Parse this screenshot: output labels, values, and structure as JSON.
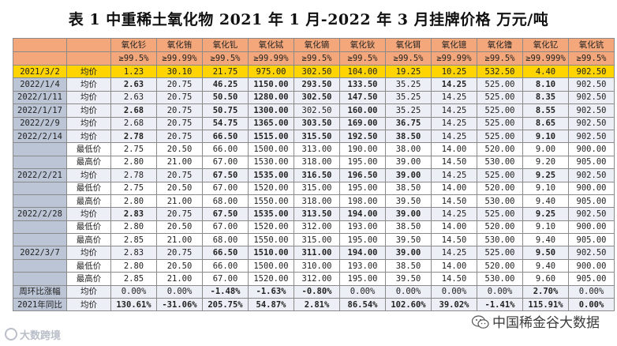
{
  "title": "表 1  中重稀土氧化物 2021 年 1 月-2022 年 3 月挂牌价格    万元/吨",
  "header": {
    "blank1": "",
    "blank2": "",
    "products": [
      {
        "name": "氧化钐",
        "purity": "≥99.5%"
      },
      {
        "name": "氧化铕",
        "purity": "≥99.99%"
      },
      {
        "name": "氧化钆",
        "purity": "≥99.5%"
      },
      {
        "name": "氧化铽",
        "purity": "≥99.99%"
      },
      {
        "name": "氧化镝",
        "purity": "≥99.5%"
      },
      {
        "name": "氧化钬",
        "purity": "≥99.5%"
      },
      {
        "name": "氧化铒",
        "purity": "≥99.5%"
      },
      {
        "name": "氧化镱",
        "purity": "≥99.99%"
      },
      {
        "name": "氧化镥",
        "purity": "≥99.5%"
      },
      {
        "name": "氧化钇",
        "purity": "≥99.999%"
      },
      {
        "name": "氧化钪",
        "purity": "≥99.5%"
      }
    ]
  },
  "rows": [
    {
      "date": "2021/3/2",
      "label": "均价",
      "style": "base",
      "cells": [
        {
          "v": "1.23",
          "c": ""
        },
        {
          "v": "30.10",
          "c": ""
        },
        {
          "v": "21.75",
          "c": ""
        },
        {
          "v": "975.00",
          "c": ""
        },
        {
          "v": "302.50",
          "c": ""
        },
        {
          "v": "104.00",
          "c": ""
        },
        {
          "v": "19.25",
          "c": ""
        },
        {
          "v": "10.25",
          "c": ""
        },
        {
          "v": "532.50",
          "c": ""
        },
        {
          "v": "4.40",
          "c": ""
        },
        {
          "v": "902.50",
          "c": ""
        }
      ]
    },
    {
      "date": "2022/1/4",
      "label": "均价",
      "style": "stripe",
      "cells": [
        {
          "v": "2.63",
          "c": "up"
        },
        {
          "v": "20.75",
          "c": ""
        },
        {
          "v": "46.25",
          "c": "up"
        },
        {
          "v": "1150.00",
          "c": "up"
        },
        {
          "v": "293.50",
          "c": "up"
        },
        {
          "v": "133.50",
          "c": "up"
        },
        {
          "v": "35.25",
          "c": ""
        },
        {
          "v": "14.25",
          "c": "up"
        },
        {
          "v": "525.00",
          "c": ""
        },
        {
          "v": "8.10",
          "c": "up"
        },
        {
          "v": "902.50",
          "c": ""
        }
      ]
    },
    {
      "date": "2022/1/11",
      "label": "均价",
      "style": "stripe",
      "cells": [
        {
          "v": "2.63",
          "c": ""
        },
        {
          "v": "20.75",
          "c": ""
        },
        {
          "v": "50.50",
          "c": "up"
        },
        {
          "v": "1280.00",
          "c": "up"
        },
        {
          "v": "302.50",
          "c": "up"
        },
        {
          "v": "147.50",
          "c": "up"
        },
        {
          "v": "35.25",
          "c": ""
        },
        {
          "v": "14.25",
          "c": ""
        },
        {
          "v": "525.00",
          "c": ""
        },
        {
          "v": "8.35",
          "c": "up"
        },
        {
          "v": "902.50",
          "c": ""
        }
      ]
    },
    {
      "date": "2022/1/17",
      "label": "均价",
      "style": "stripe",
      "cells": [
        {
          "v": "2.68",
          "c": "up"
        },
        {
          "v": "20.75",
          "c": ""
        },
        {
          "v": "50.75",
          "c": "up"
        },
        {
          "v": "1300.00",
          "c": "up"
        },
        {
          "v": "302.50",
          "c": ""
        },
        {
          "v": "160.00",
          "c": "up"
        },
        {
          "v": "35.25",
          "c": ""
        },
        {
          "v": "14.25",
          "c": ""
        },
        {
          "v": "525.00",
          "c": ""
        },
        {
          "v": "8.55",
          "c": "up"
        },
        {
          "v": "902.50",
          "c": ""
        }
      ]
    },
    {
      "date": "2022/2/9",
      "label": "均价",
      "style": "stripe",
      "cells": [
        {
          "v": "2.68",
          "c": ""
        },
        {
          "v": "20.75",
          "c": ""
        },
        {
          "v": "54.75",
          "c": "up"
        },
        {
          "v": "1365.00",
          "c": "up"
        },
        {
          "v": "303.50",
          "c": "up"
        },
        {
          "v": "169.00",
          "c": "up"
        },
        {
          "v": "36.75",
          "c": "up"
        },
        {
          "v": "14.25",
          "c": ""
        },
        {
          "v": "525.00",
          "c": ""
        },
        {
          "v": "8.65",
          "c": "up"
        },
        {
          "v": "902.50",
          "c": ""
        }
      ]
    },
    {
      "date": "2022/2/14",
      "label": "均价",
      "style": "stripe",
      "cells": [
        {
          "v": "2.78",
          "c": "up"
        },
        {
          "v": "20.75",
          "c": ""
        },
        {
          "v": "66.50",
          "c": "up"
        },
        {
          "v": "1515.00",
          "c": "up"
        },
        {
          "v": "315.50",
          "c": "up"
        },
        {
          "v": "192.50",
          "c": "up"
        },
        {
          "v": "38.50",
          "c": "up"
        },
        {
          "v": "14.25",
          "c": ""
        },
        {
          "v": "525.00",
          "c": ""
        },
        {
          "v": "9.10",
          "c": "up"
        },
        {
          "v": "902.50",
          "c": ""
        }
      ]
    },
    {
      "date": "",
      "label": "最低价",
      "style": "",
      "cells": [
        {
          "v": "2.75",
          "c": ""
        },
        {
          "v": "20.50",
          "c": ""
        },
        {
          "v": "66.00",
          "c": ""
        },
        {
          "v": "1500.00",
          "c": ""
        },
        {
          "v": "313.00",
          "c": ""
        },
        {
          "v": "190.00",
          "c": ""
        },
        {
          "v": "38.00",
          "c": ""
        },
        {
          "v": "14.00",
          "c": ""
        },
        {
          "v": "520.00",
          "c": ""
        },
        {
          "v": "9.00",
          "c": ""
        },
        {
          "v": "900.00",
          "c": ""
        }
      ]
    },
    {
      "date": "",
      "label": "最高价",
      "style": "",
      "cells": [
        {
          "v": "2.80",
          "c": ""
        },
        {
          "v": "21.00",
          "c": ""
        },
        {
          "v": "67.00",
          "c": ""
        },
        {
          "v": "1530.00",
          "c": ""
        },
        {
          "v": "318.00",
          "c": ""
        },
        {
          "v": "195.00",
          "c": ""
        },
        {
          "v": "39.00",
          "c": ""
        },
        {
          "v": "14.50",
          "c": ""
        },
        {
          "v": "530.00",
          "c": ""
        },
        {
          "v": "9.20",
          "c": ""
        },
        {
          "v": "905.00",
          "c": ""
        }
      ]
    },
    {
      "date": "2022/2/21",
      "label": "均价",
      "style": "stripe",
      "cells": [
        {
          "v": "2.78",
          "c": ""
        },
        {
          "v": "20.75",
          "c": ""
        },
        {
          "v": "67.50",
          "c": "up"
        },
        {
          "v": "1535.00",
          "c": "up"
        },
        {
          "v": "316.50",
          "c": "up"
        },
        {
          "v": "196.50",
          "c": "up"
        },
        {
          "v": "39.00",
          "c": "up"
        },
        {
          "v": "14.25",
          "c": ""
        },
        {
          "v": "525.00",
          "c": ""
        },
        {
          "v": "9.25",
          "c": "up"
        },
        {
          "v": "902.50",
          "c": ""
        }
      ]
    },
    {
      "date": "",
      "label": "最低价",
      "style": "",
      "cells": [
        {
          "v": "2.75",
          "c": ""
        },
        {
          "v": "20.50",
          "c": ""
        },
        {
          "v": "67.00",
          "c": ""
        },
        {
          "v": "1520.00",
          "c": ""
        },
        {
          "v": "315.00",
          "c": ""
        },
        {
          "v": "195.00",
          "c": ""
        },
        {
          "v": "38.50",
          "c": ""
        },
        {
          "v": "14.00",
          "c": ""
        },
        {
          "v": "520.00",
          "c": ""
        },
        {
          "v": "9.10",
          "c": ""
        },
        {
          "v": "900.00",
          "c": ""
        }
      ]
    },
    {
      "date": "",
      "label": "最高价",
      "style": "",
      "cells": [
        {
          "v": "2.80",
          "c": ""
        },
        {
          "v": "21.00",
          "c": ""
        },
        {
          "v": "68.00",
          "c": ""
        },
        {
          "v": "1550.00",
          "c": ""
        },
        {
          "v": "318.00",
          "c": ""
        },
        {
          "v": "198.00",
          "c": ""
        },
        {
          "v": "39.50",
          "c": ""
        },
        {
          "v": "14.50",
          "c": ""
        },
        {
          "v": "530.00",
          "c": ""
        },
        {
          "v": "9.40",
          "c": ""
        },
        {
          "v": "905.00",
          "c": ""
        }
      ]
    },
    {
      "date": "2022/2/28",
      "label": "均价",
      "style": "stripe",
      "cells": [
        {
          "v": "2.83",
          "c": "up"
        },
        {
          "v": "20.75",
          "c": ""
        },
        {
          "v": "67.50",
          "c": "up"
        },
        {
          "v": "1535.00",
          "c": "up"
        },
        {
          "v": "313.50",
          "c": "up"
        },
        {
          "v": "194.00",
          "c": "up"
        },
        {
          "v": "39.00",
          "c": "up"
        },
        {
          "v": "14.25",
          "c": ""
        },
        {
          "v": "525.00",
          "c": ""
        },
        {
          "v": "9.25",
          "c": "up"
        },
        {
          "v": "902.50",
          "c": ""
        }
      ]
    },
    {
      "date": "",
      "label": "最低价",
      "style": "",
      "cells": [
        {
          "v": "2.80",
          "c": ""
        },
        {
          "v": "20.50",
          "c": ""
        },
        {
          "v": "67.00",
          "c": ""
        },
        {
          "v": "1520.00",
          "c": ""
        },
        {
          "v": "312.00",
          "c": ""
        },
        {
          "v": "193.00",
          "c": ""
        },
        {
          "v": "38.50",
          "c": ""
        },
        {
          "v": "14.00",
          "c": ""
        },
        {
          "v": "520.00",
          "c": ""
        },
        {
          "v": "9.10",
          "c": ""
        },
        {
          "v": "900.00",
          "c": ""
        }
      ]
    },
    {
      "date": "",
      "label": "最高价",
      "style": "",
      "cells": [
        {
          "v": "2.85",
          "c": ""
        },
        {
          "v": "21.00",
          "c": ""
        },
        {
          "v": "68.00",
          "c": ""
        },
        {
          "v": "1550.00",
          "c": ""
        },
        {
          "v": "315.00",
          "c": ""
        },
        {
          "v": "195.00",
          "c": ""
        },
        {
          "v": "39.50",
          "c": ""
        },
        {
          "v": "14.50",
          "c": ""
        },
        {
          "v": "530.00",
          "c": ""
        },
        {
          "v": "9.40",
          "c": ""
        },
        {
          "v": "905.00",
          "c": ""
        }
      ]
    },
    {
      "date": "2022/3/7",
      "label": "均价",
      "style": "stripe",
      "cells": [
        {
          "v": "2.83",
          "c": ""
        },
        {
          "v": "20.75",
          "c": ""
        },
        {
          "v": "66.50",
          "c": "up"
        },
        {
          "v": "1510.00",
          "c": "up"
        },
        {
          "v": "311.00",
          "c": "up"
        },
        {
          "v": "194.00",
          "c": "up"
        },
        {
          "v": "39.00",
          "c": "up"
        },
        {
          "v": "14.25",
          "c": ""
        },
        {
          "v": "525.00",
          "c": ""
        },
        {
          "v": "9.50",
          "c": "up"
        },
        {
          "v": "902.50",
          "c": ""
        }
      ]
    },
    {
      "date": "",
      "label": "最低价",
      "style": "",
      "cells": [
        {
          "v": "2.80",
          "c": ""
        },
        {
          "v": "20.50",
          "c": ""
        },
        {
          "v": "66.00",
          "c": ""
        },
        {
          "v": "1500.00",
          "c": ""
        },
        {
          "v": "310.00",
          "c": ""
        },
        {
          "v": "193.00",
          "c": ""
        },
        {
          "v": "38.50",
          "c": ""
        },
        {
          "v": "14.00",
          "c": ""
        },
        {
          "v": "520.00",
          "c": ""
        },
        {
          "v": "9.40",
          "c": ""
        },
        {
          "v": "900.00",
          "c": ""
        }
      ]
    },
    {
      "date": "",
      "label": "最高价",
      "style": "",
      "cells": [
        {
          "v": "2.85",
          "c": ""
        },
        {
          "v": "21.00",
          "c": ""
        },
        {
          "v": "67.00",
          "c": ""
        },
        {
          "v": "1520.00",
          "c": ""
        },
        {
          "v": "312.00",
          "c": ""
        },
        {
          "v": "195.00",
          "c": ""
        },
        {
          "v": "39.50",
          "c": ""
        },
        {
          "v": "14.50",
          "c": ""
        },
        {
          "v": "530.00",
          "c": ""
        },
        {
          "v": "9.60",
          "c": ""
        },
        {
          "v": "905.00",
          "c": ""
        }
      ]
    },
    {
      "date": "周环比涨幅",
      "label": "均价",
      "style": "stripe",
      "cells": [
        {
          "v": "0.00%",
          "c": ""
        },
        {
          "v": "0.00%",
          "c": ""
        },
        {
          "v": "-1.48%",
          "c": "down"
        },
        {
          "v": "-1.63%",
          "c": "down"
        },
        {
          "v": "-0.80%",
          "c": "down"
        },
        {
          "v": "0.00%",
          "c": ""
        },
        {
          "v": "0.00%",
          "c": ""
        },
        {
          "v": "0.00%",
          "c": ""
        },
        {
          "v": "0.00%",
          "c": ""
        },
        {
          "v": "2.70%",
          "c": "up"
        },
        {
          "v": "0.00%",
          "c": ""
        }
      ]
    },
    {
      "date": "2021年同比",
      "label": "均价",
      "style": "stripe",
      "cells": [
        {
          "v": "130.61%",
          "c": "up"
        },
        {
          "v": "-31.06%",
          "c": "down"
        },
        {
          "v": "205.75%",
          "c": "up"
        },
        {
          "v": "54.87%",
          "c": "up"
        },
        {
          "v": "2.81%",
          "c": "up"
        },
        {
          "v": "86.54%",
          "c": "up"
        },
        {
          "v": "102.60%",
          "c": "up"
        },
        {
          "v": "39.02%",
          "c": "up"
        },
        {
          "v": "-1.41%",
          "c": "down"
        },
        {
          "v": "115.91%",
          "c": "up"
        },
        {
          "v": "0.00%",
          "c": "flat"
        }
      ]
    }
  ],
  "watermark_left": "大数跨境",
  "watermark_right": "中国稀金谷大数据",
  "colors": {
    "rise": "#e0141e",
    "fall": "#1a9f37",
    "flat": "#1f4fa8",
    "header": "#f4a77a",
    "base_row": "#ffd400",
    "date_col": "#bcc5d6"
  }
}
